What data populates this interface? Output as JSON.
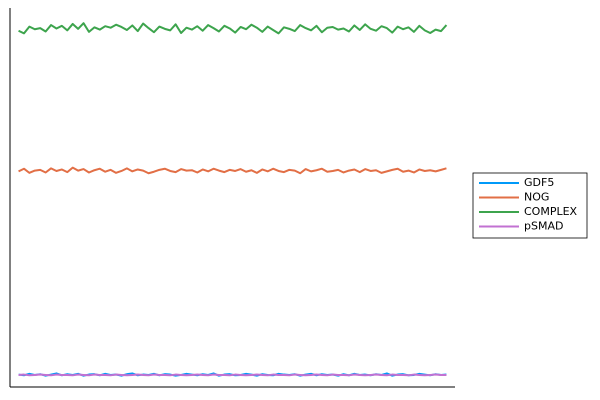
{
  "chart_data": {
    "type": "line",
    "x": [
      1,
      2,
      3,
      4,
      5,
      6,
      7,
      8,
      9,
      10,
      11,
      12,
      13,
      14,
      15,
      16,
      17,
      18,
      19,
      20,
      21,
      22,
      23,
      24,
      25,
      26,
      27,
      28,
      29,
      30,
      31,
      32,
      33,
      34,
      35,
      36,
      37,
      38,
      39,
      40,
      41,
      42,
      43,
      44,
      45,
      46,
      47,
      48,
      49,
      50,
      51,
      52,
      53,
      54,
      55,
      56,
      57,
      58,
      59,
      60,
      61,
      62,
      63,
      64,
      65,
      66,
      67,
      68,
      69,
      70,
      71,
      72,
      73,
      74,
      75,
      76,
      77,
      78,
      79,
      80
    ],
    "xlim": [
      -0.58,
      81.58
    ],
    "ylim": [
      0,
      100
    ],
    "legend": "right",
    "series": [
      {
        "name": "GDF5",
        "color": "#009af9",
        "values": [
          3.3,
          3.1,
          3.5,
          3.2,
          3.4,
          3.0,
          3.3,
          3.6,
          3.1,
          3.4,
          3.2,
          3.5,
          3.0,
          3.3,
          3.4,
          3.1,
          3.5,
          3.2,
          3.3,
          3.0,
          3.4,
          3.6,
          3.1,
          3.3,
          3.2,
          3.5,
          3.1,
          3.4,
          3.3,
          3.0,
          3.2,
          3.5,
          3.3,
          3.1,
          3.4,
          3.2,
          3.6,
          3.0,
          3.3,
          3.4,
          3.1,
          3.2,
          3.5,
          3.3,
          3.0,
          3.4,
          3.2,
          3.1,
          3.5,
          3.3,
          3.2,
          3.4,
          3.0,
          3.3,
          3.5,
          3.1,
          3.4,
          3.2,
          3.3,
          3.0,
          3.4,
          3.1,
          3.5,
          3.2,
          3.3,
          3.1,
          3.4,
          3.2,
          3.6,
          3.0,
          3.3,
          3.4,
          3.1,
          3.2,
          3.5,
          3.3,
          3.1,
          3.4,
          3.2,
          3.3
        ]
      },
      {
        "name": "NOG",
        "color": "#e26f46",
        "values": [
          57.2,
          57.9,
          56.8,
          57.4,
          57.6,
          56.9,
          58.0,
          57.3,
          57.7,
          57.0,
          58.2,
          57.4,
          57.8,
          56.9,
          57.5,
          57.9,
          57.1,
          57.6,
          56.8,
          57.3,
          58.0,
          57.2,
          57.7,
          57.4,
          56.7,
          57.1,
          57.6,
          57.9,
          57.3,
          57.0,
          57.8,
          57.4,
          57.5,
          56.9,
          57.7,
          57.2,
          57.9,
          57.4,
          57.0,
          57.6,
          57.3,
          57.8,
          57.1,
          57.5,
          56.8,
          57.7,
          57.2,
          57.9,
          57.3,
          57.0,
          57.6,
          57.4,
          56.7,
          57.8,
          57.2,
          57.5,
          57.9,
          57.1,
          57.3,
          57.6,
          56.9,
          57.4,
          57.7,
          57.0,
          57.8,
          57.3,
          57.5,
          56.8,
          57.2,
          57.6,
          57.9,
          57.1,
          57.4,
          56.9,
          57.7,
          57.3,
          57.5,
          57.2,
          57.6,
          58.0
        ]
      },
      {
        "name": "COMPLEX",
        "color": "#3da44d",
        "values": [
          94.5,
          93.8,
          95.6,
          94.9,
          95.2,
          94.3,
          96.0,
          95.1,
          95.8,
          94.6,
          96.3,
          95.0,
          96.5,
          94.2,
          95.4,
          94.8,
          95.7,
          95.3,
          96.1,
          95.5,
          94.7,
          95.9,
          94.4,
          96.4,
          95.2,
          94.1,
          95.6,
          95.0,
          94.6,
          96.2,
          93.9,
          95.3,
          94.8,
          95.7,
          94.5,
          96.0,
          95.2,
          94.3,
          95.8,
          95.1,
          94.0,
          95.5,
          94.9,
          96.1,
          95.3,
          94.2,
          95.6,
          94.7,
          93.8,
          95.4,
          95.0,
          94.4,
          96.0,
          95.2,
          94.6,
          95.8,
          94.1,
          95.3,
          95.5,
          94.8,
          95.1,
          94.3,
          95.9,
          94.7,
          96.2,
          95.0,
          94.5,
          95.7,
          95.2,
          94.0,
          95.6,
          94.9,
          95.4,
          94.2,
          95.8,
          94.6,
          93.9,
          94.8,
          94.4,
          96.0
        ]
      },
      {
        "name": "pSMAD",
        "color": "#c271d2",
        "values": [
          3.2,
          3.3,
          3.1,
          3.2,
          3.3,
          3.2,
          3.1,
          3.3,
          3.2,
          3.2,
          3.1,
          3.3,
          3.2,
          3.1,
          3.3,
          3.2,
          3.2,
          3.1,
          3.3,
          3.2,
          3.1,
          3.2,
          3.3,
          3.2,
          3.1,
          3.3,
          3.2,
          3.2,
          3.1,
          3.3,
          3.2,
          3.1,
          3.2,
          3.3,
          3.2,
          3.1,
          3.3,
          3.2,
          3.2,
          3.1,
          3.3,
          3.2,
          3.1,
          3.2,
          3.3,
          3.2,
          3.1,
          3.3,
          3.2,
          3.2,
          3.1,
          3.3,
          3.2,
          3.1,
          3.2,
          3.3,
          3.2,
          3.1,
          3.3,
          3.2,
          3.2,
          3.1,
          3.3,
          3.2,
          3.1,
          3.2,
          3.3,
          3.2,
          3.1,
          3.3,
          3.2,
          3.2,
          3.1,
          3.3,
          3.2,
          3.1,
          3.2,
          3.3,
          3.2,
          3.2
        ]
      }
    ]
  }
}
